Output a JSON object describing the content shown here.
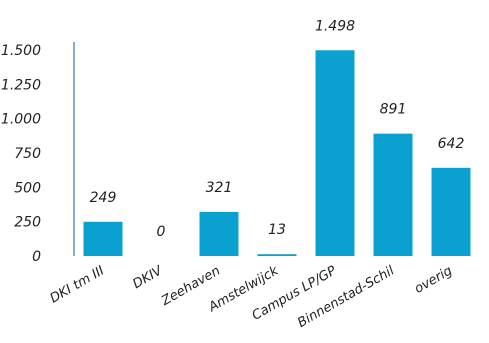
{
  "chart_data": {
    "type": "bar",
    "categories": [
      "DKI tm III",
      "DKIV",
      "Zeehaven",
      "Amstelwijck",
      "Campus LP/GP",
      "Binnenstad-Schil",
      "overig"
    ],
    "values": [
      249,
      0,
      321,
      13,
      1498,
      891,
      642
    ],
    "value_labels": [
      "249",
      "0",
      "321",
      "13",
      "1.498",
      "891",
      "642"
    ],
    "y_ticks": [
      0,
      250,
      500,
      750,
      1000,
      1250,
      1500
    ],
    "y_tick_labels": [
      "0",
      "250",
      "500",
      "750",
      "1.000",
      "1.250",
      "1.500"
    ],
    "ylim": [
      0,
      1500
    ],
    "bar_color": "#0aa0d0",
    "axis_color": "#0b5ea8",
    "grid": false,
    "legend": "none",
    "title": "",
    "xlabel": "",
    "ylabel": ""
  }
}
